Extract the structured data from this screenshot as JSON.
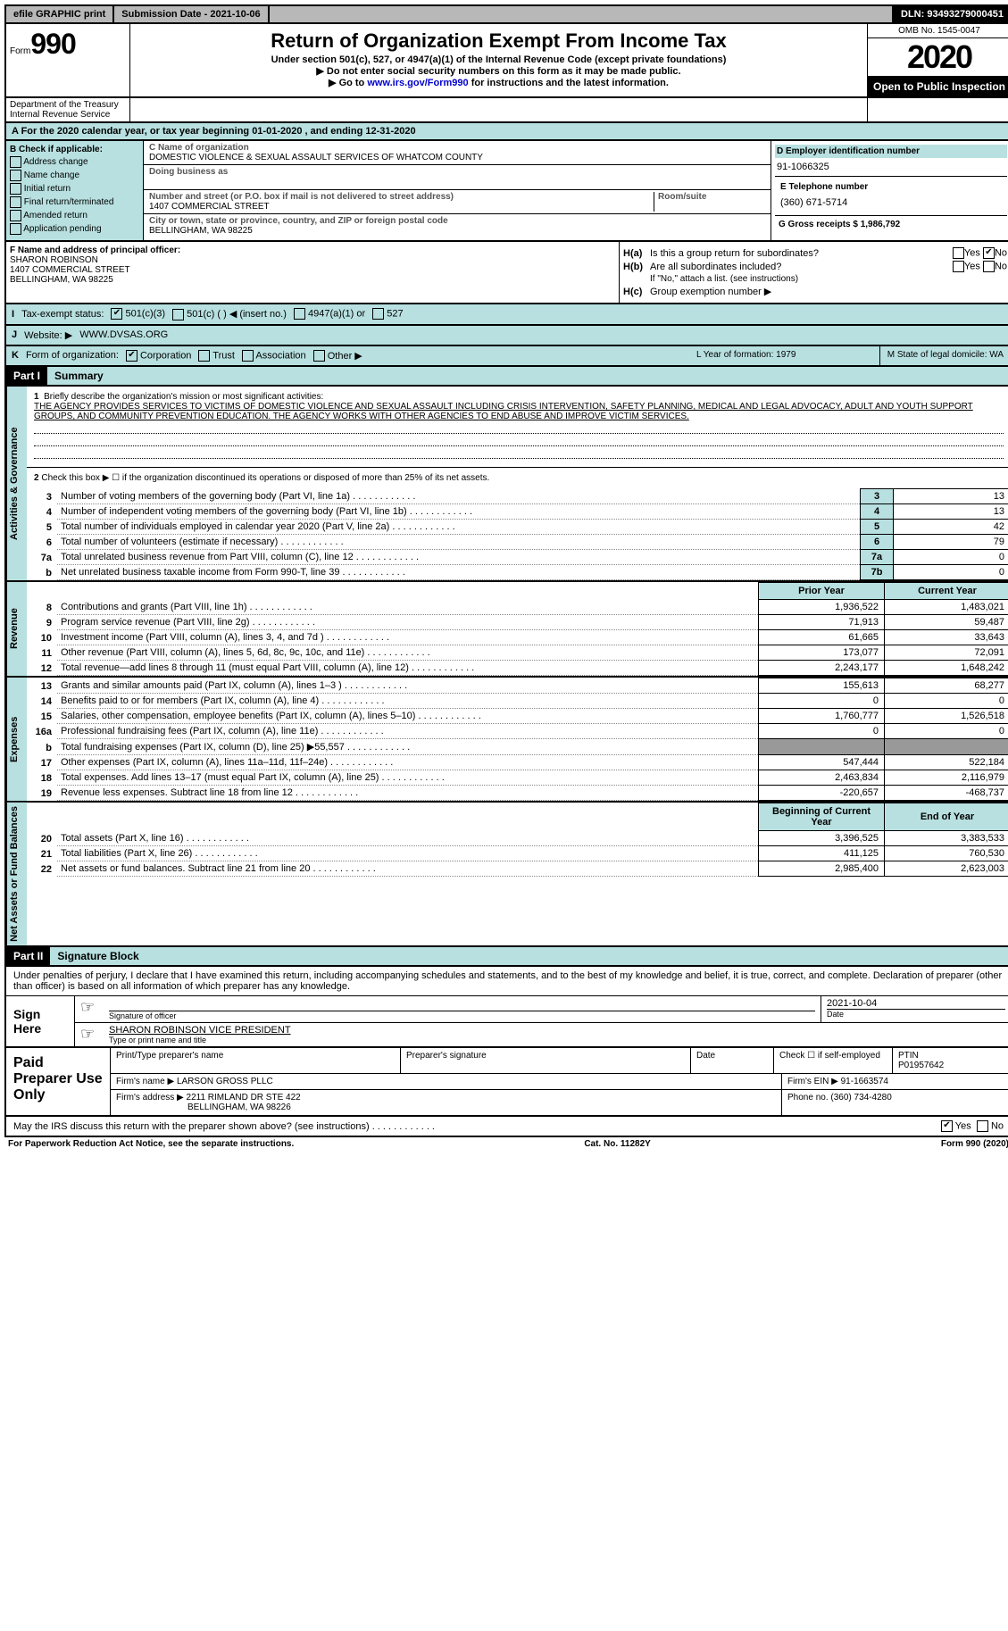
{
  "top": {
    "efile": "efile GRAPHIC print",
    "sub_date_label": "Submission Date - ",
    "sub_date": "2021-10-06",
    "dln_label": "DLN: ",
    "dln": "93493279000451"
  },
  "header": {
    "form_word": "Form",
    "form_num": "990",
    "title": "Return of Organization Exempt From Income Tax",
    "sub1": "Under section 501(c), 527, or 4947(a)(1) of the Internal Revenue Code (except private foundations)",
    "sub2": "▶ Do not enter social security numbers on this form as it may be made public.",
    "sub3_pre": "▶ Go to ",
    "sub3_link": "www.irs.gov/Form990",
    "sub3_post": " for instructions and the latest information.",
    "omb": "OMB No. 1545-0047",
    "year": "2020",
    "open": "Open to Public Inspection",
    "dept": "Department of the Treasury\nInternal Revenue Service"
  },
  "lineA": "A For the 2020 calendar year, or tax year beginning 01-01-2020   , and ending 12-31-2020",
  "sectionB": {
    "title": "B Check if applicable:",
    "opts": [
      "Address change",
      "Name change",
      "Initial return",
      "Final return/terminated",
      "Amended return",
      "Application pending"
    ]
  },
  "sectionC": {
    "name_lbl": "C Name of organization",
    "name": "DOMESTIC VIOLENCE & SEXUAL ASSAULT SERVICES OF WHATCOM COUNTY",
    "dba_lbl": "Doing business as",
    "dba": "",
    "addr_lbl": "Number and street (or P.O. box if mail is not delivered to street address)",
    "addr": "1407 COMMERCIAL STREET",
    "rs_lbl": "Room/suite",
    "city_lbl": "City or town, state or province, country, and ZIP or foreign postal code",
    "city": "BELLINGHAM, WA  98225"
  },
  "sectionD": {
    "ein_lbl": "D Employer identification number",
    "ein": "91-1066325",
    "tel_lbl": "E Telephone number",
    "tel": "(360) 671-5714",
    "gross_lbl": "G Gross receipts $",
    "gross": "1,986,792"
  },
  "sectionF": {
    "lbl": "F Name and address of principal officer:",
    "name": "SHARON ROBINSON",
    "addr": "1407 COMMERCIAL STREET",
    "city": "BELLINGHAM, WA  98225"
  },
  "sectionH": {
    "ha_lbl": "H(a)",
    "ha_txt": "Is this a group return for subordinates?",
    "hb_lbl": "H(b)",
    "hb_txt": "Are all subordinates included?",
    "hb_note": "If \"No,\" attach a list. (see instructions)",
    "hc_lbl": "H(c)",
    "hc_txt": "Group exemption number ▶"
  },
  "rowI": {
    "lbl": "I",
    "txt": "Tax-exempt status:",
    "o1": "501(c)(3)",
    "o2": "501(c) (  ) ◀ (insert no.)",
    "o3": "4947(a)(1) or",
    "o4": "527"
  },
  "rowJ": {
    "lbl": "J",
    "txt": "Website: ▶",
    "val": "WWW.DVSAS.ORG"
  },
  "rowK": {
    "lbl": "K",
    "txt": "Form of organization:",
    "o1": "Corporation",
    "o2": "Trust",
    "o3": "Association",
    "o4": "Other ▶"
  },
  "rowLM": {
    "l": "L Year of formation: 1979",
    "m": "M State of legal domicile: WA"
  },
  "part1": {
    "header": "Part I",
    "title": "Summary",
    "q1_lbl": "1",
    "q1": "Briefly describe the organization's mission or most significant activities:",
    "q1_val": "THE AGENCY PROVIDES SERVICES TO VICTIMS OF DOMESTIC VIOLENCE AND SEXUAL ASSAULT INCLUDING CRISIS INTERVENTION, SAFETY PLANNING, MEDICAL AND LEGAL ADVOCACY, ADULT AND YOUTH SUPPORT GROUPS, AND COMMUNITY PREVENTION EDUCATION. THE AGENCY WORKS WITH OTHER AGENCIES TO END ABUSE AND IMPROVE VICTIM SERVICES.",
    "q2": "Check this box ▶ ☐  if the organization discontinued its operations or disposed of more than 25% of its net assets.",
    "gov_label": "Activities & Governance",
    "rev_label": "Revenue",
    "exp_label": "Expenses",
    "na_label": "Net Assets or Fund Balances",
    "lines_gov": [
      {
        "n": "3",
        "d": "Number of voting members of the governing body (Part VI, line 1a)",
        "box": "3",
        "v": "13"
      },
      {
        "n": "4",
        "d": "Number of independent voting members of the governing body (Part VI, line 1b)",
        "box": "4",
        "v": "13"
      },
      {
        "n": "5",
        "d": "Total number of individuals employed in calendar year 2020 (Part V, line 2a)",
        "box": "5",
        "v": "42"
      },
      {
        "n": "6",
        "d": "Total number of volunteers (estimate if necessary)",
        "box": "6",
        "v": "79"
      },
      {
        "n": "7a",
        "d": "Total unrelated business revenue from Part VIII, column (C), line 12",
        "box": "7a",
        "v": "0"
      },
      {
        "n": "b",
        "d": "Net unrelated business taxable income from Form 990-T, line 39",
        "box": "7b",
        "v": "0"
      }
    ],
    "prior_year": "Prior Year",
    "current_year": "Current Year",
    "lines_rev": [
      {
        "n": "8",
        "d": "Contributions and grants (Part VIII, line 1h)",
        "p": "1,936,522",
        "c": "1,483,021"
      },
      {
        "n": "9",
        "d": "Program service revenue (Part VIII, line 2g)",
        "p": "71,913",
        "c": "59,487"
      },
      {
        "n": "10",
        "d": "Investment income (Part VIII, column (A), lines 3, 4, and 7d )",
        "p": "61,665",
        "c": "33,643"
      },
      {
        "n": "11",
        "d": "Other revenue (Part VIII, column (A), lines 5, 6d, 8c, 9c, 10c, and 11e)",
        "p": "173,077",
        "c": "72,091"
      },
      {
        "n": "12",
        "d": "Total revenue—add lines 8 through 11 (must equal Part VIII, column (A), line 12)",
        "p": "2,243,177",
        "c": "1,648,242"
      }
    ],
    "lines_exp": [
      {
        "n": "13",
        "d": "Grants and similar amounts paid (Part IX, column (A), lines 1–3 )",
        "p": "155,613",
        "c": "68,277"
      },
      {
        "n": "14",
        "d": "Benefits paid to or for members (Part IX, column (A), line 4)",
        "p": "0",
        "c": "0"
      },
      {
        "n": "15",
        "d": "Salaries, other compensation, employee benefits (Part IX, column (A), lines 5–10)",
        "p": "1,760,777",
        "c": "1,526,518"
      },
      {
        "n": "16a",
        "d": "Professional fundraising fees (Part IX, column (A), line 11e)",
        "p": "0",
        "c": "0"
      },
      {
        "n": "b",
        "d": "Total fundraising expenses (Part IX, column (D), line 25) ▶55,557",
        "p": "shade",
        "c": "shade"
      },
      {
        "n": "17",
        "d": "Other expenses (Part IX, column (A), lines 11a–11d, 11f–24e)",
        "p": "547,444",
        "c": "522,184"
      },
      {
        "n": "18",
        "d": "Total expenses. Add lines 13–17 (must equal Part IX, column (A), line 25)",
        "p": "2,463,834",
        "c": "2,116,979"
      },
      {
        "n": "19",
        "d": "Revenue less expenses. Subtract line 18 from line 12",
        "p": "-220,657",
        "c": "-468,737"
      }
    ],
    "begin_year": "Beginning of Current Year",
    "end_year": "End of Year",
    "lines_na": [
      {
        "n": "20",
        "d": "Total assets (Part X, line 16)",
        "p": "3,396,525",
        "c": "3,383,533"
      },
      {
        "n": "21",
        "d": "Total liabilities (Part X, line 26)",
        "p": "411,125",
        "c": "760,530"
      },
      {
        "n": "22",
        "d": "Net assets or fund balances. Subtract line 21 from line 20",
        "p": "2,985,400",
        "c": "2,623,003"
      }
    ]
  },
  "part2": {
    "header": "Part II",
    "title": "Signature Block",
    "decl": "Under penalties of perjury, I declare that I have examined this return, including accompanying schedules and statements, and to the best of my knowledge and belief, it is true, correct, and complete. Declaration of preparer (other than officer) is based on all information of which preparer has any knowledge.",
    "sign_here": "Sign Here",
    "sig_officer": "Signature of officer",
    "sig_date_lbl": "Date",
    "sig_date": "2021-10-04",
    "name_title": "SHARON ROBINSON VICE PRESIDENT",
    "name_title_lbl": "Type or print name and title",
    "paid_prep": "Paid Preparer Use Only",
    "pp_name_lbl": "Print/Type preparer's name",
    "pp_sig_lbl": "Preparer's signature",
    "pp_date_lbl": "Date",
    "pp_check_lbl": "Check ☐ if self-employed",
    "ptin_lbl": "PTIN",
    "ptin": "P01957642",
    "firm_name_lbl": "Firm's name  ▶",
    "firm_name": "LARSON GROSS PLLC",
    "firm_ein_lbl": "Firm's EIN ▶",
    "firm_ein": "91-1663574",
    "firm_addr_lbl": "Firm's address ▶",
    "firm_addr": "2211 RIMLAND DR STE 422",
    "firm_city": "BELLINGHAM, WA  98226",
    "phone_lbl": "Phone no.",
    "phone": "(360) 734-4280",
    "discuss": "May the IRS discuss this return with the preparer shown above? (see instructions)",
    "yes": "Yes",
    "no": "No"
  },
  "footer": {
    "pra": "For Paperwork Reduction Act Notice, see the separate instructions.",
    "cat": "Cat. No. 11282Y",
    "form": "Form 990 (2020)"
  }
}
